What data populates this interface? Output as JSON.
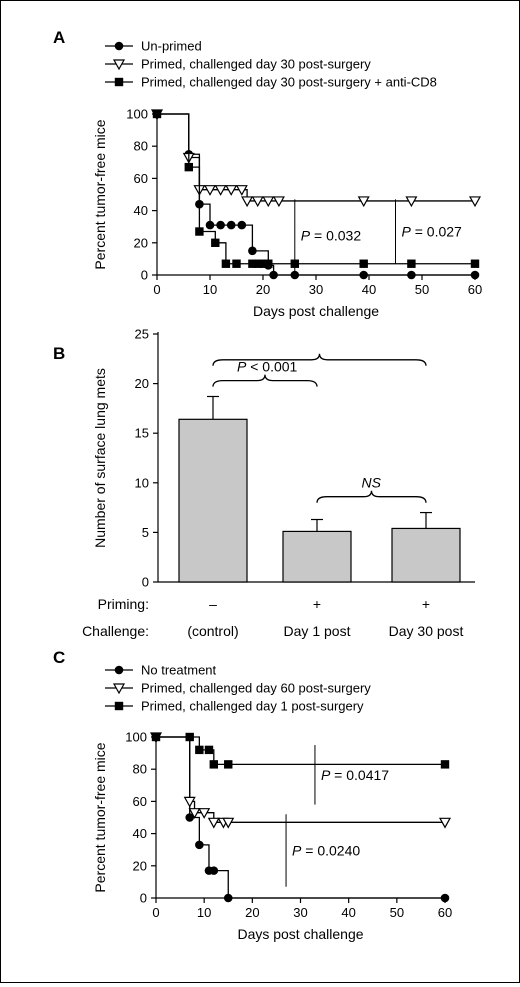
{
  "chart_data": [
    {
      "panel": "A",
      "type": "line",
      "xlabel": "Days post challenge",
      "ylabel": "Percent tumor-free mice",
      "xlim": [
        0,
        60
      ],
      "ylim": [
        0,
        100
      ],
      "xticks": [
        0,
        10,
        20,
        30,
        40,
        50,
        60
      ],
      "yticks": [
        0,
        20,
        40,
        60,
        80,
        100
      ],
      "legend_position": "top-left",
      "series": [
        {
          "name": "Un-primed",
          "marker": "filled-circle",
          "steps": [
            [
              0,
              100
            ],
            [
              6,
              75
            ],
            [
              8,
              44
            ],
            [
              10,
              31
            ],
            [
              18,
              15
            ],
            [
              21,
              6
            ],
            [
              22,
              0
            ],
            [
              60,
              0
            ]
          ],
          "points": [
            [
              0,
              100
            ],
            [
              6,
              75
            ],
            [
              8,
              44
            ],
            [
              10,
              31
            ],
            [
              12,
              31
            ],
            [
              14,
              31
            ],
            [
              16,
              31
            ],
            [
              18,
              15
            ],
            [
              21,
              6
            ],
            [
              22,
              0
            ],
            [
              26,
              0
            ],
            [
              39,
              0
            ],
            [
              48,
              0
            ],
            [
              60,
              0
            ]
          ]
        },
        {
          "name": "Primed, challenged day 30 post-surgery",
          "marker": "open-triangle-down",
          "steps": [
            [
              0,
              100
            ],
            [
              6,
              73
            ],
            [
              8,
              53
            ],
            [
              17,
              46
            ],
            [
              60,
              46
            ]
          ],
          "points": [
            [
              0,
              100
            ],
            [
              6,
              73
            ],
            [
              8,
              53
            ],
            [
              10,
              53
            ],
            [
              12,
              53
            ],
            [
              14,
              53
            ],
            [
              16,
              53
            ],
            [
              17,
              46
            ],
            [
              19,
              46
            ],
            [
              21,
              46
            ],
            [
              23,
              46
            ],
            [
              39,
              46
            ],
            [
              48,
              46
            ],
            [
              60,
              46
            ]
          ]
        },
        {
          "name": "Primed, challenged day 30 post-surgery + anti-CD8",
          "marker": "filled-square",
          "steps": [
            [
              0,
              100
            ],
            [
              6,
              67
            ],
            [
              8,
              27
            ],
            [
              11,
              20
            ],
            [
              13,
              7
            ],
            [
              60,
              7
            ]
          ],
          "points": [
            [
              0,
              100
            ],
            [
              6,
              67
            ],
            [
              8,
              27
            ],
            [
              11,
              20
            ],
            [
              13,
              7
            ],
            [
              15,
              7
            ],
            [
              18,
              7
            ],
            [
              19,
              7
            ],
            [
              20,
              7
            ],
            [
              21,
              7
            ],
            [
              26,
              7
            ],
            [
              39,
              7
            ],
            [
              48,
              7
            ],
            [
              60,
              7
            ]
          ]
        }
      ],
      "annotations": [
        {
          "text": "P = 0.032",
          "x": 26,
          "y_from": 2,
          "y_to": 47
        },
        {
          "text": "P = 0.027",
          "x": 45,
          "y_from": 7,
          "y_to": 47
        }
      ]
    },
    {
      "panel": "B",
      "type": "bar",
      "ylabel": "Number of surface lung mets",
      "ylim": [
        0,
        25
      ],
      "yticks": [
        0,
        5,
        10,
        15,
        20,
        25
      ],
      "categories": [
        "(control)",
        "Day 1 post",
        "Day 30 post"
      ],
      "values": [
        16.4,
        5.1,
        5.4
      ],
      "errors": [
        2.3,
        1.2,
        1.6
      ],
      "bar_color": "#c8c8c8",
      "rows": [
        {
          "label": "Priming:",
          "values": [
            "–",
            "+",
            "+"
          ]
        },
        {
          "label": "Challenge:",
          "values": [
            "(control)",
            "Day 1 post",
            "Day 30 post"
          ]
        }
      ],
      "brackets": [
        {
          "text": "P < 0.001",
          "from": 0,
          "to": 1,
          "y": 20.3
        },
        {
          "from": 0,
          "to": 2,
          "y": 22.4
        },
        {
          "text": "NS",
          "from": 1,
          "to": 2,
          "y": 8.6
        }
      ]
    },
    {
      "panel": "C",
      "type": "line",
      "xlabel": "Days post challenge",
      "ylabel": "Percent tumor-free mice",
      "xlim": [
        0,
        60
      ],
      "ylim": [
        0,
        100
      ],
      "xticks": [
        0,
        10,
        20,
        30,
        40,
        50,
        60
      ],
      "yticks": [
        0,
        20,
        40,
        60,
        80,
        100
      ],
      "legend_position": "top-left",
      "series": [
        {
          "name": "No treatment",
          "marker": "filled-circle",
          "steps": [
            [
              0,
              100
            ],
            [
              7,
              50
            ],
            [
              9,
              33
            ],
            [
              11,
              17
            ],
            [
              15,
              0
            ],
            [
              60,
              0
            ]
          ],
          "points": [
            [
              0,
              100
            ],
            [
              7,
              50
            ],
            [
              9,
              33
            ],
            [
              11,
              17
            ],
            [
              12,
              17
            ],
            [
              15,
              0
            ],
            [
              60,
              0
            ]
          ]
        },
        {
          "name": "Primed, challenged day 60 post-surgery",
          "marker": "open-triangle-down",
          "steps": [
            [
              0,
              100
            ],
            [
              7,
              60
            ],
            [
              8,
              53
            ],
            [
              12,
              47
            ],
            [
              60,
              47
            ]
          ],
          "points": [
            [
              0,
              100
            ],
            [
              7,
              60
            ],
            [
              8,
              53
            ],
            [
              10,
              53
            ],
            [
              12,
              47
            ],
            [
              14,
              47
            ],
            [
              15,
              47
            ],
            [
              60,
              47
            ]
          ]
        },
        {
          "name": "Primed, challenged day 1 post-surgery",
          "marker": "filled-square",
          "steps": [
            [
              0,
              100
            ],
            [
              9,
              92
            ],
            [
              12,
              83
            ],
            [
              60,
              83
            ]
          ],
          "points": [
            [
              0,
              100
            ],
            [
              7,
              100
            ],
            [
              9,
              92
            ],
            [
              11,
              92
            ],
            [
              12,
              83
            ],
            [
              15,
              83
            ],
            [
              60,
              83
            ]
          ]
        }
      ],
      "annotations": [
        {
          "text": "P = 0.0417",
          "x": 33,
          "y_from": 58,
          "y_to": 95
        },
        {
          "text": "P = 0.0240",
          "x": 27,
          "y_from": 7,
          "y_to": 52
        }
      ]
    }
  ]
}
